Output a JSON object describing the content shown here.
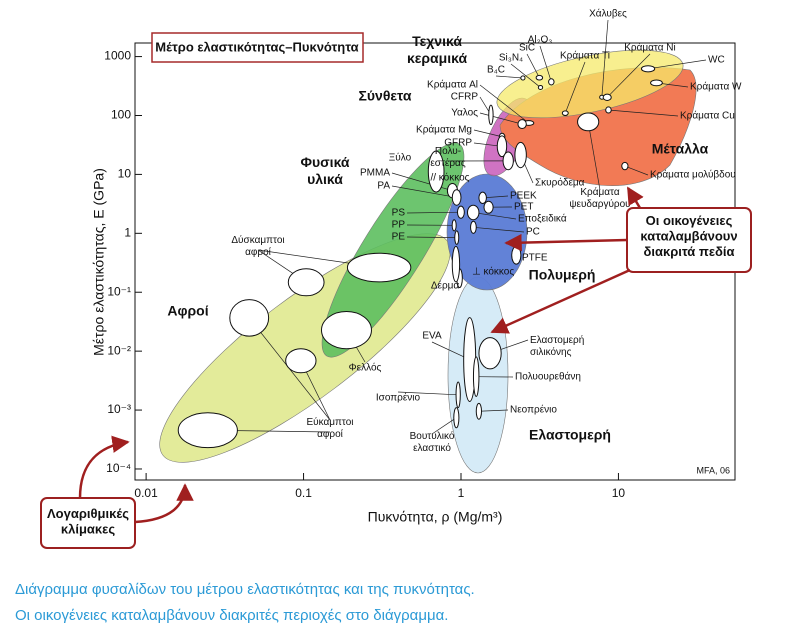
{
  "chart_data": {
    "type": "bubble-region",
    "title": "Μέτρο ελαστικότητας–Πυκνότητα",
    "x_label": "Πυκνότητα, ρ (Mg/m³)",
    "y_label": "Μέτρο ελαστικότητας, E (GPa)",
    "log_x": true,
    "log_y": true,
    "xlim": [
      0.0085,
      55
    ],
    "ylim": [
      6.5e-05,
      1700
    ],
    "xticks": [
      0.01,
      0.1,
      1,
      10
    ],
    "yticks": [
      1000,
      100,
      10,
      1,
      {
        "value": 0.1,
        "label": "10⁻¹"
      },
      {
        "value": 0.01,
        "label": "10⁻²"
      },
      {
        "value": 0.001,
        "label": "10⁻³"
      },
      {
        "value": 0.0001,
        "label": "10⁻⁴"
      }
    ],
    "families": [
      {
        "name": "Αφροί",
        "color": "#e3eb9a"
      },
      {
        "name": "Φυσικά\nυλικά",
        "color": "#5dbf5f"
      },
      {
        "name": "Ελαστομερή",
        "color": "#cfe8f6"
      },
      {
        "name": "Πολυμερή",
        "color": "#5a7bd5"
      },
      {
        "name": "Σύνθετα",
        "color": "#c85ab8"
      },
      {
        "name": "Μέταλλα",
        "color": "#f27a55"
      },
      {
        "name": "Τεχνικά\nκεραμικά",
        "color": "#f6ea6a"
      }
    ],
    "materials": [
      {
        "name": "Al₂O₃",
        "ellipses": [
          {
            "x": [
              3.6,
              3.9
            ],
            "y": [
              330,
              420
            ]
          }
        ]
      },
      {
        "name": "SiC",
        "ellipses": [
          {
            "x": [
              3.0,
              3.3
            ],
            "y": [
              400,
              480
            ]
          }
        ]
      },
      {
        "name": "Si₃N₄",
        "ellipses": [
          {
            "x": [
              3.1,
              3.3
            ],
            "y": [
              280,
              320
            ]
          }
        ]
      },
      {
        "name": "B₄C",
        "ellipses": [
          {
            "x": [
              2.4,
              2.55
            ],
            "y": [
              400,
              470
            ]
          }
        ]
      },
      {
        "name": "Χάλυβες",
        "ellipses": [
          {
            "x": [
              7.6,
              8.1
            ],
            "y": [
              190,
              220
            ]
          }
        ]
      },
      {
        "name": "Κράματα Ti",
        "ellipses": [
          {
            "x": [
              4.4,
              4.8
            ],
            "y": [
              100,
              120
            ]
          }
        ]
      },
      {
        "name": "Κράματα Ni",
        "ellipses": [
          {
            "x": [
              8.0,
              9.0
            ],
            "y": [
              180,
              230
            ]
          }
        ]
      },
      {
        "name": "WC",
        "ellipses": [
          {
            "x": [
              14,
              17
            ],
            "y": [
              550,
              700
            ]
          }
        ]
      },
      {
        "name": "Κράματα W",
        "ellipses": [
          {
            "x": [
              16,
              19
            ],
            "y": [
              320,
              400
            ]
          }
        ]
      },
      {
        "name": "Κράματα Al",
        "ellipses": [
          {
            "x": [
              2.5,
              2.9
            ],
            "y": [
              68,
              82
            ]
          }
        ]
      },
      {
        "name": "CFRP",
        "ellipses": [
          {
            "x": [
              1.5,
              1.6
            ],
            "y": [
              70,
              150
            ]
          }
        ]
      },
      {
        "name": "Κράματα Cu",
        "ellipses": [
          {
            "x": [
              8.3,
              9.0
            ],
            "y": [
              110,
              140
            ]
          }
        ]
      },
      {
        "name": "Υαλος",
        "ellipses": [
          {
            "x": [
              2.3,
              2.6
            ],
            "y": [
              60,
              85
            ]
          }
        ]
      },
      {
        "name": "Κράματα Mg",
        "ellipses": [
          {
            "x": [
              1.75,
              1.9
            ],
            "y": [
              38,
              50
            ]
          }
        ]
      },
      {
        "name": "GFRP",
        "ellipses": [
          {
            "x": [
              1.7,
              1.95
            ],
            "y": [
              20,
              45
            ]
          }
        ]
      },
      {
        "name": "Πολυ-\nεστέρας",
        "ellipses": [
          {
            "x": [
              1.85,
              2.15
            ],
            "y": [
              12,
              24
            ]
          }
        ]
      },
      {
        "name": "Σκυρόδεμα",
        "ellipses": [
          {
            "x": [
              2.2,
              2.6
            ],
            "y": [
              13,
              35
            ]
          }
        ]
      },
      {
        "name": "Κράματα\nψευδαργύρου",
        "ellipses": [
          {
            "x": [
              5.5,
              7.5
            ],
            "y": [
              55,
              110
            ]
          }
        ]
      },
      {
        "name": "Κράματα μολύβδου",
        "ellipses": [
          {
            "x": [
              10.5,
              11.5
            ],
            "y": [
              12,
              16
            ]
          }
        ]
      },
      {
        "name": "// κόκκος",
        "ellipses": [
          {
            "x": [
              0.62,
              0.78
            ],
            "y": [
              5,
              25
            ]
          }
        ]
      },
      {
        "name": "PMMA",
        "ellipses": [
          {
            "x": [
              0.82,
              0.95
            ],
            "y": [
              4,
              7
            ]
          }
        ]
      },
      {
        "name": "PA",
        "ellipses": [
          {
            "x": [
              0.88,
              1.0
            ],
            "y": [
              3,
              5.5
            ]
          }
        ]
      },
      {
        "name": "PEEK",
        "ellipses": [
          {
            "x": [
              1.3,
              1.45
            ],
            "y": [
              3.2,
              5
            ]
          }
        ]
      },
      {
        "name": "PET",
        "ellipses": [
          {
            "x": [
              1.4,
              1.6
            ],
            "y": [
              2.2,
              3.5
            ]
          }
        ]
      },
      {
        "name": "Εποξειδικά",
        "ellipses": [
          {
            "x": [
              1.1,
              1.3
            ],
            "y": [
              1.7,
              3
            ]
          }
        ]
      },
      {
        "name": "PS",
        "ellipses": [
          {
            "x": [
              0.95,
              1.05
            ],
            "y": [
              1.8,
              2.9
            ]
          }
        ]
      },
      {
        "name": "PP",
        "ellipses": [
          {
            "x": [
              0.89,
              0.92
            ],
            "y": [
              1.1,
              1.7
            ]
          }
        ]
      },
      {
        "name": "PE",
        "ellipses": [
          {
            "x": [
              0.92,
              0.96
            ],
            "y": [
              0.65,
              1.1
            ]
          }
        ]
      },
      {
        "name": "PC",
        "ellipses": [
          {
            "x": [
              1.15,
              1.25
            ],
            "y": [
              1.0,
              1.6
            ]
          }
        ]
      },
      {
        "name": "PTFE",
        "ellipses": [
          {
            "x": [
              2.1,
              2.4
            ],
            "y": [
              0.3,
              0.6
            ]
          }
        ]
      },
      {
        "name": "Δέρμα",
        "ellipses": [
          {
            "x": [
              0.94,
              1.02
            ],
            "y": [
              0.12,
              0.25
            ]
          }
        ]
      },
      {
        "name": "⊥ κόκκος",
        "ellipses": [
          {
            "x": [
              0.88,
              0.98
            ],
            "y": [
              0.15,
              0.6
            ]
          }
        ]
      },
      {
        "name": "EVA",
        "ellipses": [
          {
            "x": [
              1.04,
              1.24
            ],
            "y": [
              0.0014,
              0.037
            ]
          }
        ]
      },
      {
        "name": "Ελαστομερή\nσιλικόνης",
        "ellipses": [
          {
            "x": [
              1.3,
              1.8
            ],
            "y": [
              0.005,
              0.017
            ]
          }
        ]
      },
      {
        "name": "Πολυουρεθάνη",
        "ellipses": [
          {
            "x": [
              1.2,
              1.3
            ],
            "y": [
              0.0017,
              0.008
            ]
          }
        ]
      },
      {
        "name": "Ισοπρένιο",
        "ellipses": [
          {
            "x": [
              0.93,
              0.99
            ],
            "y": [
              0.0011,
              0.003
            ]
          }
        ]
      },
      {
        "name": "Νεοπρένιο",
        "ellipses": [
          {
            "x": [
              1.25,
              1.35
            ],
            "y": [
              0.0007,
              0.0013
            ]
          }
        ]
      },
      {
        "name": "Βουτυλικό\nελαστικό",
        "ellipses": [
          {
            "x": [
              0.9,
              0.97
            ],
            "y": [
              0.0005,
              0.0011
            ]
          }
        ]
      },
      {
        "name": "Φελλός",
        "ellipses": [
          {
            "x": [
              0.13,
              0.27
            ],
            "y": [
              0.011,
              0.047
            ]
          }
        ]
      },
      {
        "name": "Δύσκαμπτοι\nαφροί",
        "ellipses": [
          {
            "x": [
              0.08,
              0.135
            ],
            "y": [
              0.087,
              0.25
            ]
          },
          {
            "x": [
              0.19,
              0.48
            ],
            "y": [
              0.15,
              0.46
            ]
          }
        ]
      },
      {
        "name": "Εύκαμπτοι\nαφροί",
        "ellipses": [
          {
            "x": [
              0.016,
              0.038
            ],
            "y": [
              0.00023,
              0.0009
            ]
          },
          {
            "x": [
              0.034,
              0.06
            ],
            "y": [
              0.018,
              0.075
            ]
          },
          {
            "x": [
              0.077,
              0.12
            ],
            "y": [
              0.0043,
              0.011
            ]
          }
        ]
      }
    ],
    "annotations": [
      "Ξύλο",
      "MFA, 06"
    ]
  },
  "callouts": [
    "Οι οικογένειες\nκαταλαμβάνουν\nδιακριτά πεδία",
    "Λογαριθμικές\nκλίμακες"
  ],
  "caption": [
    "Διάγραμμα φυσαλίδων του μέτρου ελαστικότητας και της πυκνότητας.",
    "Οι οικογένειες καταλαμβάνουν διακριτές περιοχές στο διάγραμμα."
  ]
}
